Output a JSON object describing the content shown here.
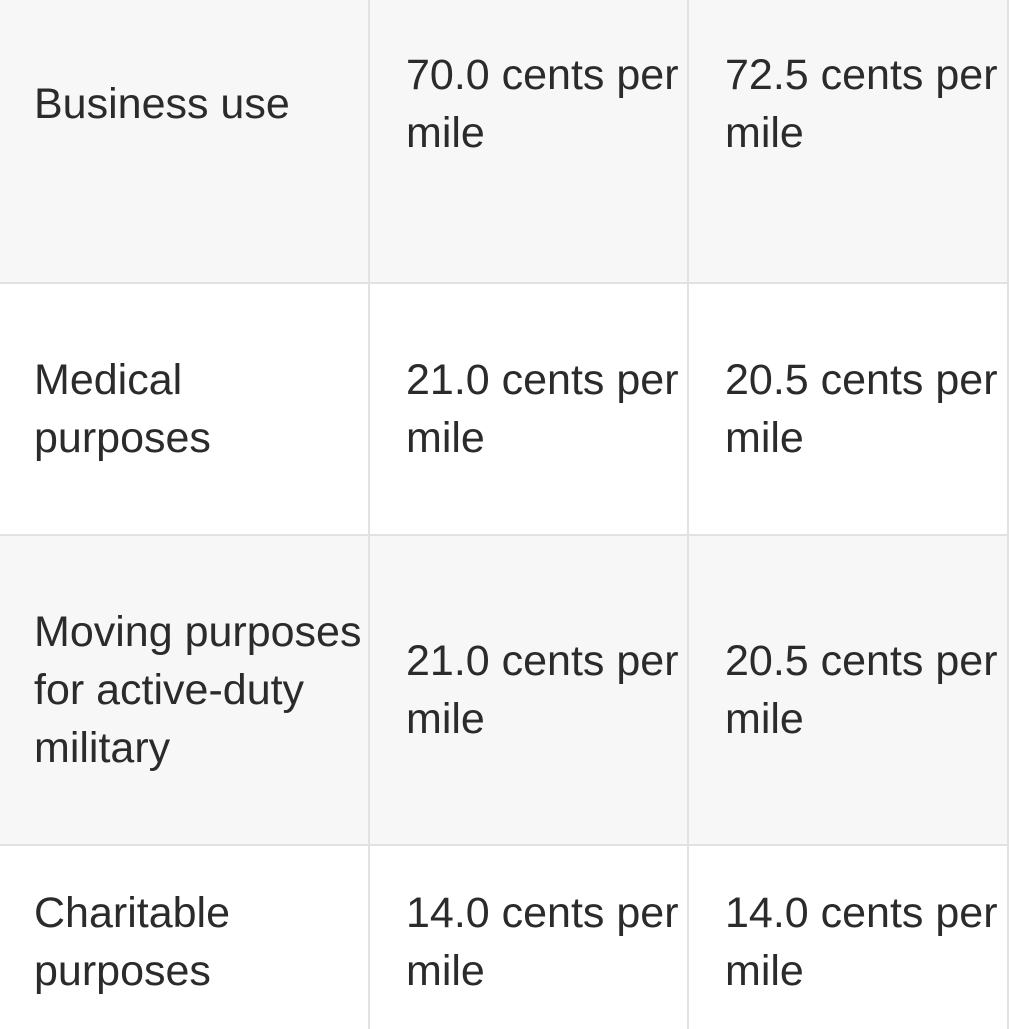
{
  "rows": [
    {
      "category": "Business use",
      "rate_a": "70.0 cents per mile",
      "rate_b": "72.5 cents per mile"
    },
    {
      "category": "Medical purposes",
      "rate_a": "21.0 cents per mile",
      "rate_b": "20.5 cents per mile"
    },
    {
      "category": "Moving purposes for active-duty military",
      "rate_a": "21.0 cents per mile",
      "rate_b": "20.5 cents per mile"
    },
    {
      "category": "Charitable purposes",
      "rate_a": "14.0 cents per mile",
      "rate_b": "14.0 cents per mile"
    }
  ],
  "colors": {
    "border": "#e2e2e2",
    "shaded_row": "#f7f7f7",
    "text": "#2b2b2b"
  }
}
